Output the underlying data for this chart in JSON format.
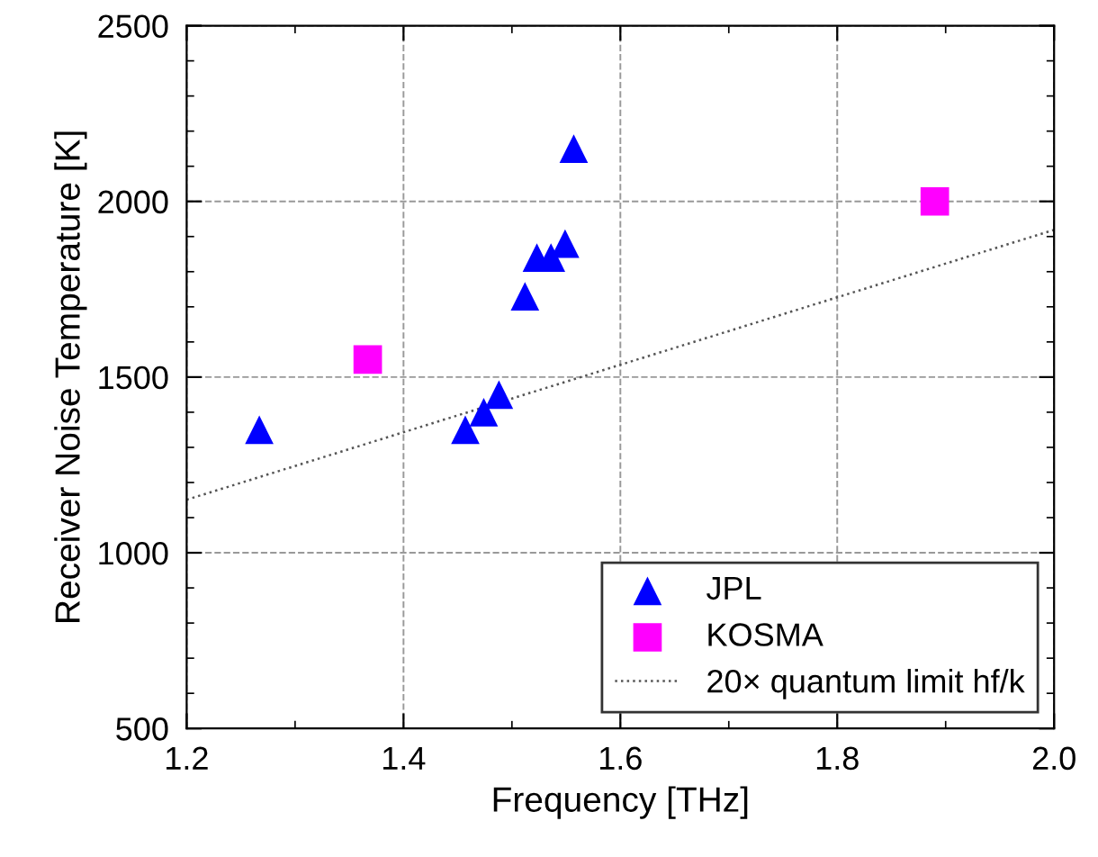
{
  "chart_data": {
    "type": "scatter",
    "xlabel": "Frequency [THz]",
    "ylabel": "Receiver Noise Temperature [K]",
    "xlim": [
      1.2,
      2.0
    ],
    "ylim": [
      500,
      2500
    ],
    "xticks": [
      1.2,
      {
        "value": 1.3,
        "label": null
      },
      1.4,
      {
        "value": 1.5,
        "label": null
      },
      1.6,
      {
        "value": 1.7,
        "label": null
      },
      1.8,
      {
        "value": 1.9,
        "label": null
      },
      {
        "value": 2.0,
        "label": "2.0"
      }
    ],
    "yticks": [
      500,
      {
        "value": 600,
        "label": null
      },
      {
        "value": 700,
        "label": null
      },
      {
        "value": 800,
        "label": null
      },
      {
        "value": 900,
        "label": null
      },
      1000,
      {
        "value": 1100,
        "label": null
      },
      {
        "value": 1200,
        "label": null
      },
      {
        "value": 1300,
        "label": null
      },
      {
        "value": 1400,
        "label": null
      },
      1500,
      {
        "value": 1600,
        "label": null
      },
      {
        "value": 1700,
        "label": null
      },
      {
        "value": 1800,
        "label": null
      },
      {
        "value": 1900,
        "label": null
      },
      2000,
      {
        "value": 2100,
        "label": null
      },
      {
        "value": 2200,
        "label": null
      },
      {
        "value": 2300,
        "label": null
      },
      {
        "value": 2400,
        "label": null
      },
      2500
    ],
    "grid": true,
    "legend": "bottom right",
    "series": [
      {
        "name": "JPL",
        "color": "#0000ff",
        "marker": "triangle",
        "x": [
          1.267,
          1.457,
          1.474,
          1.488,
          1.512,
          1.523,
          1.536,
          1.549,
          1.557
        ],
        "values": [
          1350,
          1350,
          1400,
          1450,
          1730,
          1840,
          1840,
          1880,
          2150
        ]
      },
      {
        "name": "KOSMA",
        "color": "#ff00ff",
        "marker": "square",
        "x": [
          1.367,
          1.89
        ],
        "values": [
          1550,
          2000
        ]
      },
      {
        "name": "20× quantum limit hf/k",
        "type": "line",
        "color": "#555555",
        "line_style": "dotted",
        "marker": "none",
        "x": [
          1.2,
          2.0
        ],
        "values": [
          1151,
          1919
        ]
      }
    ]
  }
}
